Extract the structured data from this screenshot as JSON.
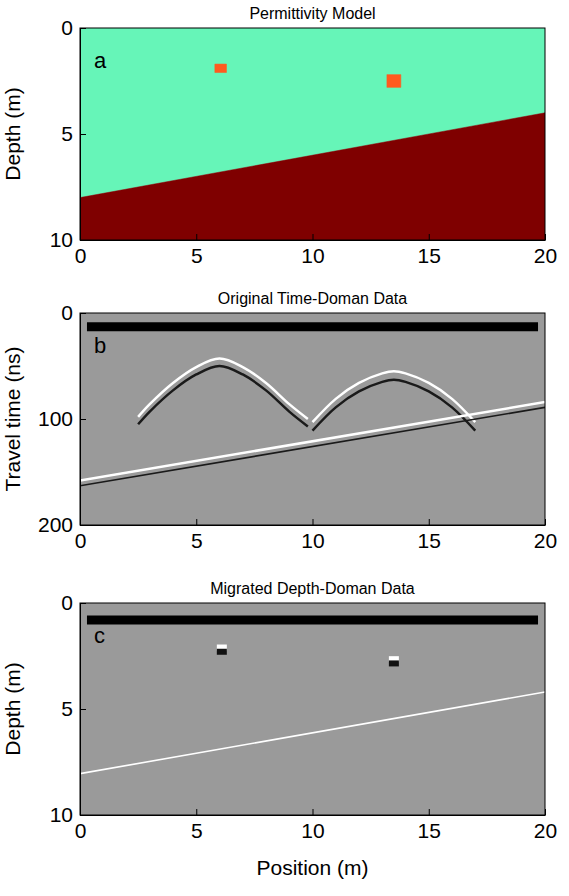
{
  "chart_data": [
    {
      "type": "model",
      "title": "Permittivity Model",
      "annotation": "a",
      "ylabel": "Depth (m)",
      "xlim": [
        0,
        20
      ],
      "ylim": [
        0,
        10
      ],
      "xticks": [
        0,
        5,
        10,
        15,
        20
      ],
      "yticks": [
        0,
        5,
        10
      ],
      "series": [
        {
          "type": "area",
          "color": "#66f5b8",
          "x": [
            0,
            20
          ],
          "values": [
            0,
            0
          ],
          "base": [
            8,
            4
          ]
        },
        {
          "type": "area",
          "color": "#7f0000",
          "x": [
            0,
            20
          ],
          "values": [
            8,
            4
          ],
          "base": [
            10,
            10
          ]
        },
        {
          "type": "area",
          "color": "#ff5a1f",
          "x": [
            5.8,
            6.3
          ],
          "values": [
            1.7,
            1.7
          ],
          "base": [
            2.1,
            2.1
          ]
        },
        {
          "type": "area",
          "color": "#ff5a1f",
          "x": [
            13.2,
            13.8
          ],
          "values": [
            2.2,
            2.2
          ],
          "base": [
            2.8,
            2.8
          ]
        }
      ]
    },
    {
      "type": "image",
      "title": "Original Time-Doman Data",
      "annotation": "b",
      "ylabel": "Travel time (ns)",
      "xlim": [
        0,
        20
      ],
      "ylim": [
        0,
        200
      ],
      "xticks": [
        0,
        5,
        10,
        15,
        20
      ],
      "yticks": [
        0,
        100,
        200
      ],
      "series": [
        {
          "type": "line",
          "color": "#000000",
          "line_style": "heavy",
          "x": [
            0.3,
            19.7
          ],
          "values": [
            13,
            13
          ]
        },
        {
          "type": "line",
          "color": "#ffffff",
          "line_style": "solid",
          "x": [
            2.5,
            3,
            4,
            5,
            6,
            7,
            8,
            9,
            9.8
          ],
          "values": [
            98,
            86,
            66,
            51,
            43,
            51,
            66,
            86,
            100
          ]
        },
        {
          "type": "line",
          "color": "#1a1a1a",
          "line_style": "solid",
          "x": [
            2.5,
            3,
            4,
            5,
            6,
            7,
            8,
            9,
            9.8
          ],
          "values": [
            105,
            93,
            73,
            58,
            50,
            58,
            73,
            93,
            107
          ]
        },
        {
          "type": "line",
          "color": "#ffffff",
          "line_style": "solid",
          "x": [
            10,
            11,
            12,
            13,
            13.5,
            14,
            15,
            16,
            17
          ],
          "values": [
            103,
            81,
            66,
            57,
            55,
            57,
            66,
            81,
            103
          ]
        },
        {
          "type": "line",
          "color": "#1a1a1a",
          "line_style": "solid",
          "x": [
            10,
            11,
            12,
            13,
            13.5,
            14,
            15,
            16,
            17
          ],
          "values": [
            111,
            89,
            74,
            65,
            63,
            65,
            74,
            89,
            111
          ]
        },
        {
          "type": "line",
          "color": "#ffffff",
          "line_style": "solid",
          "x": [
            0,
            20
          ],
          "values": [
            158,
            84
          ]
        },
        {
          "type": "line",
          "color": "#1a1a1a",
          "line_style": "thin",
          "x": [
            0,
            20
          ],
          "values": [
            163,
            89
          ]
        }
      ]
    },
    {
      "type": "image",
      "title": "Migrated Depth-Doman Data",
      "annotation": "c",
      "ylabel": "Depth (m)",
      "xlabel": "Position (m)",
      "xlim": [
        0,
        20
      ],
      "ylim": [
        0,
        10
      ],
      "xticks": [
        0,
        5,
        10,
        15,
        20
      ],
      "yticks": [
        0,
        5,
        10
      ],
      "series": [
        {
          "type": "line",
          "color": "#000000",
          "line_style": "heavy",
          "x": [
            0.3,
            19.7
          ],
          "values": [
            0.8,
            0.8
          ]
        },
        {
          "type": "line",
          "color": "#ffffff",
          "line_style": "thin",
          "x": [
            0,
            20
          ],
          "values": [
            8.05,
            4.2
          ]
        },
        {
          "type": "scatter",
          "color": "#ffffff",
          "marker": "square",
          "x": [
            6.1,
            13.5
          ],
          "values": [
            2.1,
            2.65
          ]
        },
        {
          "type": "scatter",
          "color": "#111111",
          "marker": "square",
          "x": [
            6.1,
            13.5
          ],
          "values": [
            2.3,
            2.85
          ]
        }
      ]
    }
  ]
}
